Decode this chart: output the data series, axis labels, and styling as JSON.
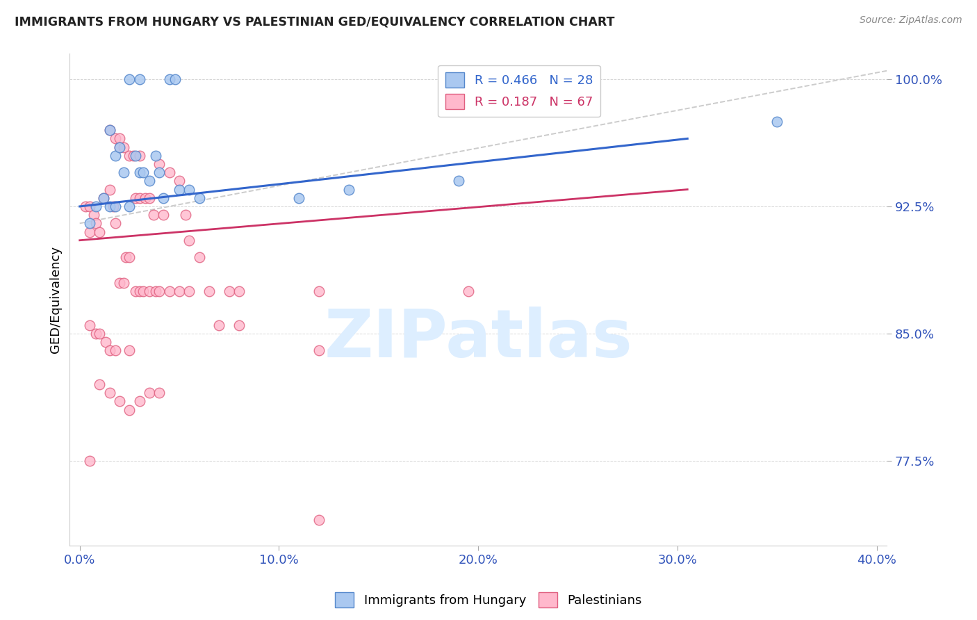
{
  "title": "IMMIGRANTS FROM HUNGARY VS PALESTINIAN GED/EQUIVALENCY CORRELATION CHART",
  "source": "Source: ZipAtlas.com",
  "ytick_labels": [
    "77.5%",
    "85.0%",
    "92.5%",
    "100.0%"
  ],
  "ytick_values": [
    0.775,
    0.85,
    0.925,
    1.0
  ],
  "xtick_labels": [
    "0.0%",
    "10.0%",
    "20.0%",
    "30.0%",
    "40.0%"
  ],
  "xtick_values": [
    0.0,
    0.1,
    0.2,
    0.3,
    0.4
  ],
  "xlim": [
    -0.005,
    0.405
  ],
  "ylim": [
    0.725,
    1.015
  ],
  "legend_blue_label": "R = 0.466   N = 28",
  "legend_pink_label": "R = 0.187   N = 67",
  "blue_scatter_color_face": "#aac8f0",
  "blue_scatter_color_edge": "#5588cc",
  "pink_scatter_color_face": "#ffb8cc",
  "pink_scatter_color_edge": "#e06080",
  "blue_line_color": "#3366cc",
  "pink_line_color": "#cc3366",
  "dashed_line_color": "#cccccc",
  "watermark_text": "ZIPatlas",
  "watermark_color": "#ddeeff",
  "ylabel": "GED/Equivalency",
  "legend_blue_text_color": "#3366cc",
  "legend_pink_text_color": "#cc3366",
  "blue_scatter_x": [
    0.005,
    0.008,
    0.012,
    0.015,
    0.015,
    0.018,
    0.018,
    0.02,
    0.022,
    0.025,
    0.025,
    0.028,
    0.03,
    0.03,
    0.032,
    0.035,
    0.038,
    0.04,
    0.042,
    0.045,
    0.048,
    0.05,
    0.055,
    0.06,
    0.11,
    0.135,
    0.19,
    0.35
  ],
  "blue_scatter_y": [
    0.915,
    0.925,
    0.93,
    0.97,
    0.925,
    0.955,
    0.925,
    0.96,
    0.945,
    1.0,
    0.925,
    0.955,
    1.0,
    0.945,
    0.945,
    0.94,
    0.955,
    0.945,
    0.93,
    1.0,
    1.0,
    0.935,
    0.935,
    0.93,
    0.93,
    0.935,
    0.94,
    0.975
  ],
  "pink_scatter_x": [
    0.003,
    0.005,
    0.005,
    0.005,
    0.007,
    0.008,
    0.008,
    0.01,
    0.01,
    0.012,
    0.013,
    0.015,
    0.015,
    0.015,
    0.017,
    0.018,
    0.018,
    0.018,
    0.02,
    0.02,
    0.02,
    0.022,
    0.022,
    0.023,
    0.025,
    0.025,
    0.025,
    0.027,
    0.028,
    0.028,
    0.03,
    0.03,
    0.03,
    0.032,
    0.033,
    0.035,
    0.035,
    0.037,
    0.038,
    0.04,
    0.04,
    0.042,
    0.045,
    0.045,
    0.05,
    0.05,
    0.053,
    0.055,
    0.055,
    0.06,
    0.065,
    0.07,
    0.075,
    0.08,
    0.08,
    0.12,
    0.12,
    0.195,
    0.005,
    0.01,
    0.015,
    0.02,
    0.025,
    0.03,
    0.035,
    0.04,
    0.12
  ],
  "pink_scatter_y": [
    0.925,
    0.925,
    0.91,
    0.855,
    0.92,
    0.915,
    0.85,
    0.91,
    0.85,
    0.93,
    0.845,
    0.97,
    0.935,
    0.84,
    0.925,
    0.965,
    0.915,
    0.84,
    0.965,
    0.96,
    0.88,
    0.96,
    0.88,
    0.895,
    0.955,
    0.895,
    0.84,
    0.955,
    0.93,
    0.875,
    0.955,
    0.93,
    0.875,
    0.875,
    0.93,
    0.93,
    0.875,
    0.92,
    0.875,
    0.95,
    0.875,
    0.92,
    0.945,
    0.875,
    0.94,
    0.875,
    0.92,
    0.905,
    0.875,
    0.895,
    0.875,
    0.855,
    0.875,
    0.875,
    0.855,
    0.875,
    0.84,
    0.875,
    0.775,
    0.82,
    0.815,
    0.81,
    0.805,
    0.81,
    0.815,
    0.815,
    0.74
  ],
  "blue_line_x": [
    0.0,
    0.305
  ],
  "blue_line_y": [
    0.925,
    0.965
  ],
  "pink_line_x": [
    0.0,
    0.305
  ],
  "pink_line_y": [
    0.905,
    0.935
  ],
  "dash_line_x": [
    0.0,
    0.405
  ],
  "dash_line_y": [
    0.915,
    1.005
  ]
}
